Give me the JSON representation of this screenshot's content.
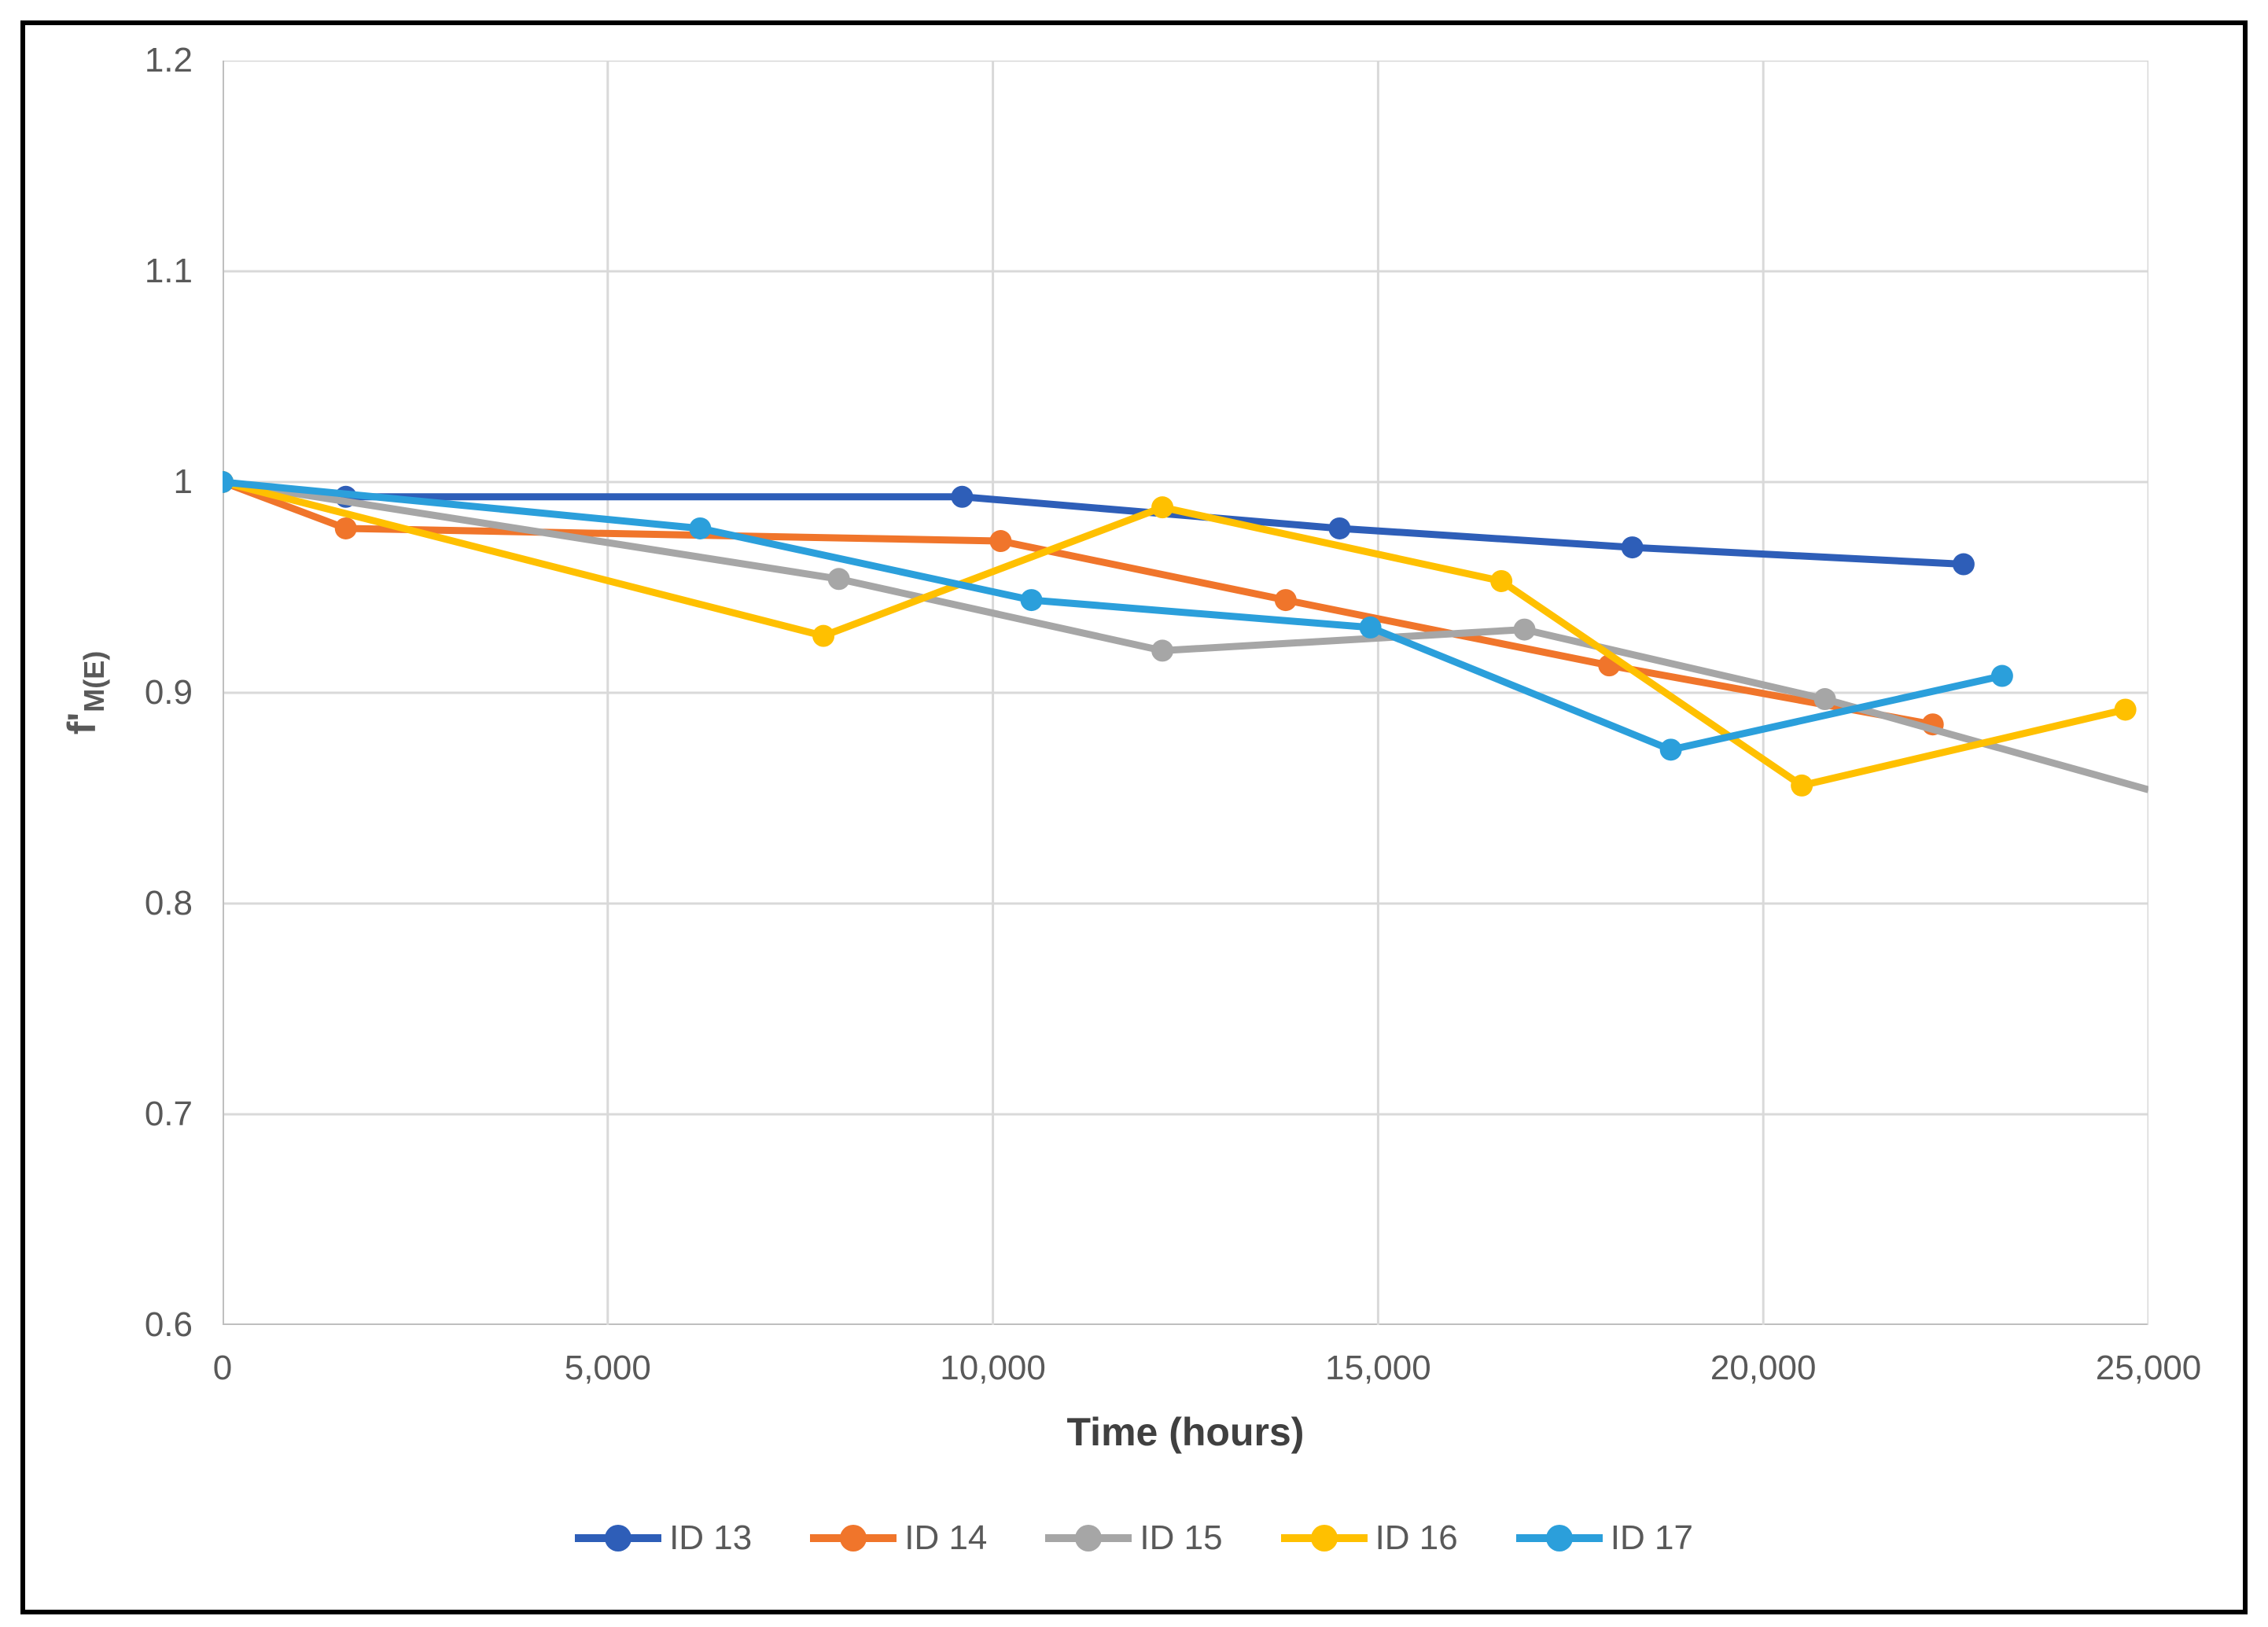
{
  "axes": {
    "y_title_main": "f'",
    "y_title_sub": "M(E)",
    "x_title": "Time (hours)"
  },
  "chart_data": {
    "type": "line",
    "title": "",
    "xlabel": "Time (hours)",
    "ylabel": "f'M(E)",
    "xlim": [
      0,
      25000
    ],
    "ylim": [
      0.6,
      1.2
    ],
    "grid": true,
    "legend_position": "bottom",
    "x_ticks": [
      {
        "value": 0,
        "label": "0"
      },
      {
        "value": 5000,
        "label": "5,000"
      },
      {
        "value": 10000,
        "label": "10,000"
      },
      {
        "value": 15000,
        "label": "15,000"
      },
      {
        "value": 20000,
        "label": "20,000"
      },
      {
        "value": 25000,
        "label": "25,000"
      }
    ],
    "y_ticks": [
      {
        "value": 1.2,
        "label": "1.2"
      },
      {
        "value": 1.1,
        "label": "1.1"
      },
      {
        "value": 1.0,
        "label": "1"
      },
      {
        "value": 0.9,
        "label": "0.9"
      },
      {
        "value": 0.8,
        "label": "0.8"
      },
      {
        "value": 0.7,
        "label": "0.7"
      },
      {
        "value": 0.6,
        "label": "0.6"
      }
    ],
    "colors": {
      "grid": "#D9D9D9",
      "axis_line": "#BFBFBF",
      "tick_text": "#595959"
    },
    "series": [
      {
        "name": "ID 13",
        "color": "#2E5EB8",
        "points": [
          [
            0,
            1.0
          ],
          [
            1600,
            0.993
          ],
          [
            9600,
            0.993
          ],
          [
            14500,
            0.978
          ],
          [
            18300,
            0.969
          ],
          [
            22600,
            0.961
          ]
        ]
      },
      {
        "name": "ID 14",
        "color": "#F0752B",
        "points": [
          [
            0,
            1.0
          ],
          [
            1600,
            0.978
          ],
          [
            10100,
            0.972
          ],
          [
            13800,
            0.944
          ],
          [
            18000,
            0.913
          ],
          [
            22200,
            0.885
          ]
        ]
      },
      {
        "name": "ID 15",
        "color": "#A6A6A6",
        "points": [
          [
            0,
            1.0
          ],
          [
            8000,
            0.954
          ],
          [
            12200,
            0.92
          ],
          [
            16900,
            0.93
          ],
          [
            20800,
            0.897
          ],
          [
            25000,
            0.854
          ]
        ],
        "end_marker_clipped": true
      },
      {
        "name": "ID 16",
        "color": "#FFC000",
        "points": [
          [
            0,
            1.0
          ],
          [
            7800,
            0.927
          ],
          [
            12200,
            0.988
          ],
          [
            16600,
            0.953
          ],
          [
            20500,
            0.856
          ],
          [
            24700,
            0.892
          ]
        ]
      },
      {
        "name": "ID 17",
        "color": "#2B9FDB",
        "points": [
          [
            0,
            1.0
          ],
          [
            6200,
            0.978
          ],
          [
            10500,
            0.944
          ],
          [
            14900,
            0.931
          ],
          [
            18800,
            0.873
          ],
          [
            23100,
            0.908
          ]
        ]
      }
    ]
  }
}
